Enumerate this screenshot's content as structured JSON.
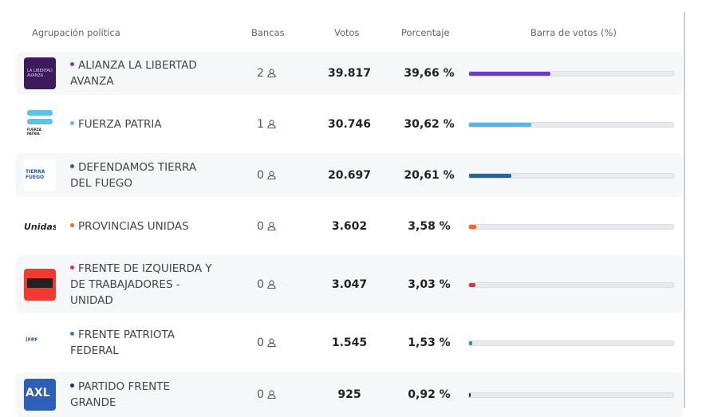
{
  "header": {
    "party": "Agrupación política",
    "seats": "Bancas",
    "votes": "Votos",
    "percent": "Porcentaje",
    "bar": "Barra de votos (%)"
  },
  "seat_icon": "person-icon",
  "rows": [
    {
      "name": "ALIANZA LA LIBERTAD AVANZA",
      "seats": "2",
      "votes": "39.817",
      "percent": "39,66 %",
      "pct": 39.66,
      "color": "#6b3fc0",
      "logo": "La Libertad Avanza"
    },
    {
      "name": "FUERZA PATRIA",
      "seats": "1",
      "votes": "30.746",
      "percent": "30,62 %",
      "pct": 30.62,
      "color": "#5fb3e3",
      "logo": "Fuerza Patria"
    },
    {
      "name": "DEFENDAMOS TIERRA DEL FUEGO",
      "seats": "0",
      "votes": "20.697",
      "percent": "20,61 %",
      "pct": 20.61,
      "color": "#2d6291",
      "logo": "Defendamos Tierra del Fuego"
    },
    {
      "name": "PROVINCIAS UNIDAS",
      "seats": "0",
      "votes": "3.602",
      "percent": "3,58 %",
      "pct": 3.58,
      "color": "#f26a22",
      "logo": "Unidas"
    },
    {
      "name": "FRENTE DE IZQUIERDA Y DE TRABAJADORES - UNIDAD",
      "seats": "0",
      "votes": "3.047",
      "percent": "3,03 %",
      "pct": 3.03,
      "color": "#e2323a",
      "logo": "Frente de Izquierda"
    },
    {
      "name": "FRENTE PATRIOTA FEDERAL",
      "seats": "0",
      "votes": "1.545",
      "percent": "1,53 %",
      "pct": 1.53,
      "color": "#2a86b8",
      "logo": "Frente Patriota Federal"
    },
    {
      "name": "PARTIDO FRENTE GRANDE",
      "seats": "0",
      "votes": "925",
      "percent": "0,92 %",
      "pct": 0.92,
      "color": "#1f2b73",
      "logo": "AXL"
    }
  ]
}
